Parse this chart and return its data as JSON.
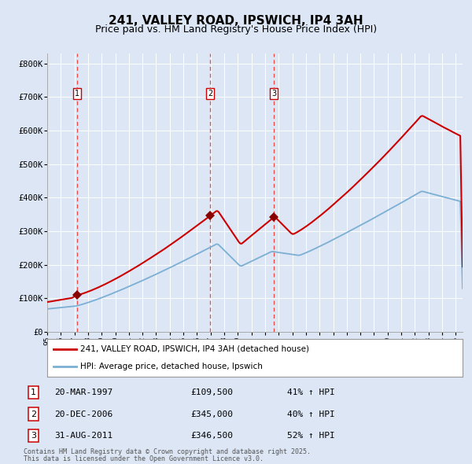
{
  "title": "241, VALLEY ROAD, IPSWICH, IP4 3AH",
  "subtitle": "Price paid vs. HM Land Registry's House Price Index (HPI)",
  "title_fontsize": 11,
  "subtitle_fontsize": 9,
  "background_color": "#dce6f5",
  "plot_bg_color": "#dce6f5",
  "ylim": [
    0,
    830000
  ],
  "yticks": [
    0,
    100000,
    200000,
    300000,
    400000,
    500000,
    600000,
    700000,
    800000
  ],
  "ytick_labels": [
    "£0",
    "£100K",
    "£200K",
    "£300K",
    "£400K",
    "£500K",
    "£600K",
    "£700K",
    "£800K"
  ],
  "sale_color": "#cc0000",
  "hpi_color": "#7bafd4",
  "sale_marker_color": "#880000",
  "vline_color": "#ee4444",
  "legend_entry1": "241, VALLEY ROAD, IPSWICH, IP4 3AH (detached house)",
  "legend_entry2": "HPI: Average price, detached house, Ipswich",
  "transactions": [
    {
      "label": "1",
      "date_str": "20-MAR-1997",
      "price": 109500,
      "pct": "41%",
      "x": 1997.21
    },
    {
      "label": "2",
      "date_str": "20-DEC-2006",
      "price": 345000,
      "pct": "40%",
      "x": 2006.97
    },
    {
      "label": "3",
      "date_str": "31-AUG-2011",
      "price": 346500,
      "pct": "52%",
      "x": 2011.66
    }
  ],
  "footer1": "Contains HM Land Registry data © Crown copyright and database right 2025.",
  "footer2": "This data is licensed under the Open Government Licence v3.0."
}
